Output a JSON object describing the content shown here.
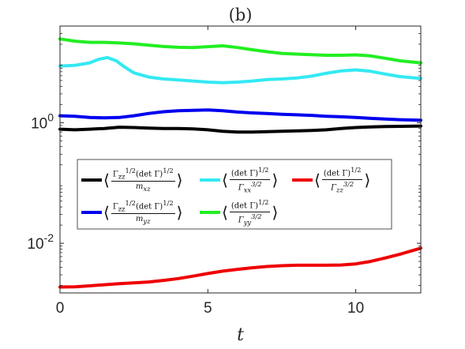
{
  "chart_data": {
    "type": "line",
    "title": "(b)",
    "xlabel": "t",
    "ylabel": "",
    "xlim": [
      0,
      12.2
    ],
    "ylim": [
      0.0015,
      40
    ],
    "yscale": "log",
    "grid": false,
    "legend_position": "middle",
    "x_ticks": [
      0,
      5,
      10
    ],
    "x_tick_labels": [
      "0",
      "5",
      "10"
    ],
    "y_ticks": [
      0.01,
      1
    ],
    "y_tick_labels": [
      {
        "base": "10",
        "exp": "-2"
      },
      {
        "base": "10",
        "exp": "0"
      }
    ],
    "series": [
      {
        "name": "⟨ Γzz^{1/2}(det Γ)^{1/2} / m_xz ⟩",
        "legend": {
          "num": "Γ<sub>zz</sub><sup>1/2</sup>(det Γ)<sup>1/2</sup>",
          "den": "m<sub>xz</sub>"
        },
        "color": "#000000",
        "x": [
          0,
          0.5,
          1.0,
          1.5,
          2.0,
          2.5,
          3.0,
          3.5,
          4.0,
          4.5,
          5.0,
          5.5,
          6.0,
          6.5,
          7.0,
          7.5,
          8.0,
          8.5,
          9.0,
          9.5,
          10.0,
          10.5,
          11.0,
          11.5,
          12.2
        ],
        "y": [
          0.78,
          0.76,
          0.78,
          0.8,
          0.84,
          0.83,
          0.81,
          0.8,
          0.8,
          0.79,
          0.76,
          0.72,
          0.7,
          0.7,
          0.71,
          0.72,
          0.73,
          0.74,
          0.76,
          0.8,
          0.83,
          0.85,
          0.86,
          0.87,
          0.88
        ]
      },
      {
        "name": "⟨ Γzz^{1/2}(det Γ)^{1/2} / m_yz ⟩",
        "legend": {
          "num": "Γ<sub>zz</sub><sup>1/2</sup>(det Γ)<sup>1/2</sup>",
          "den": "m<sub>yz</sub>"
        },
        "color": "#0000ee",
        "x": [
          0,
          0.5,
          1.0,
          1.5,
          2.0,
          2.5,
          3.0,
          3.5,
          4.0,
          4.5,
          5.0,
          5.5,
          6.0,
          6.5,
          7.0,
          7.5,
          8.0,
          8.5,
          9.0,
          9.5,
          10.0,
          10.5,
          11.0,
          11.5,
          12.2
        ],
        "y": [
          1.3,
          1.28,
          1.22,
          1.2,
          1.22,
          1.3,
          1.42,
          1.52,
          1.58,
          1.6,
          1.62,
          1.58,
          1.5,
          1.45,
          1.42,
          1.38,
          1.35,
          1.32,
          1.28,
          1.25,
          1.22,
          1.18,
          1.15,
          1.12,
          1.1
        ]
      },
      {
        "name": "⟨ (det Γ)^{1/2} / Γxx^{3/2} ⟩",
        "legend": {
          "num": "(det Γ)<sup>1/2</sup>",
          "den": "Γ<sub>xx</sub><sup>3/2</sup>"
        },
        "color": "#33e9f2",
        "x": [
          0,
          0.5,
          1.0,
          1.3,
          1.6,
          1.9,
          2.2,
          2.5,
          3.0,
          3.5,
          4.0,
          4.5,
          5.0,
          5.5,
          6.0,
          6.5,
          7.0,
          7.5,
          8.0,
          8.5,
          9.0,
          9.5,
          10.0,
          10.5,
          11.0,
          11.5,
          12.2
        ],
        "y": [
          8.7,
          8.9,
          9.8,
          11.2,
          12.0,
          10.6,
          8.3,
          6.7,
          5.7,
          5.3,
          5.1,
          4.9,
          4.7,
          4.6,
          4.7,
          4.9,
          5.2,
          5.3,
          5.5,
          5.9,
          6.6,
          7.2,
          7.5,
          7.1,
          6.4,
          5.8,
          5.4
        ]
      },
      {
        "name": "⟨ (det Γ)^{1/2} / Γyy^{3/2} ⟩",
        "legend": {
          "num": "(det Γ)<sup>1/2</sup>",
          "den": "Γ<sub>yy</sub><sup>3/2</sup>"
        },
        "color": "#22ee22",
        "x": [
          0,
          0.5,
          1.0,
          1.5,
          2.0,
          2.5,
          3.0,
          3.5,
          4.0,
          4.5,
          5.0,
          5.5,
          6.0,
          6.5,
          7.0,
          7.5,
          8.0,
          8.5,
          9.0,
          9.5,
          10.0,
          10.5,
          11.0,
          11.5,
          12.2
        ],
        "y": [
          24.5,
          22.5,
          21.5,
          21.5,
          21.0,
          20.3,
          19.2,
          18.3,
          17.8,
          17.6,
          18.2,
          18.8,
          17.6,
          16.2,
          15.0,
          14.1,
          13.7,
          13.4,
          13.1,
          13.1,
          13.3,
          12.8,
          11.7,
          10.6,
          9.8
        ]
      },
      {
        "name": "⟨ (det Γ)^{1/2} / Γzz^{3/2} ⟩",
        "legend": {
          "num": "(det Γ)<sup>1/2</sup>",
          "den": "Γ<sub>zz</sub><sup>3/2</sup>"
        },
        "color": "#ee0000",
        "x": [
          0,
          0.5,
          1.0,
          1.5,
          2.0,
          2.5,
          3.0,
          3.5,
          4.0,
          4.5,
          5.0,
          5.5,
          6.0,
          6.5,
          7.0,
          7.5,
          8.0,
          8.5,
          9.0,
          9.5,
          10.0,
          10.5,
          11.0,
          11.5,
          12.2
        ],
        "y": [
          0.00188,
          0.0019,
          0.00197,
          0.00205,
          0.00214,
          0.0022,
          0.00228,
          0.00242,
          0.0026,
          0.00285,
          0.00315,
          0.00345,
          0.0037,
          0.00393,
          0.00412,
          0.00425,
          0.00432,
          0.00432,
          0.00432,
          0.00436,
          0.00455,
          0.005,
          0.0057,
          0.0066,
          0.0083
        ]
      }
    ]
  }
}
